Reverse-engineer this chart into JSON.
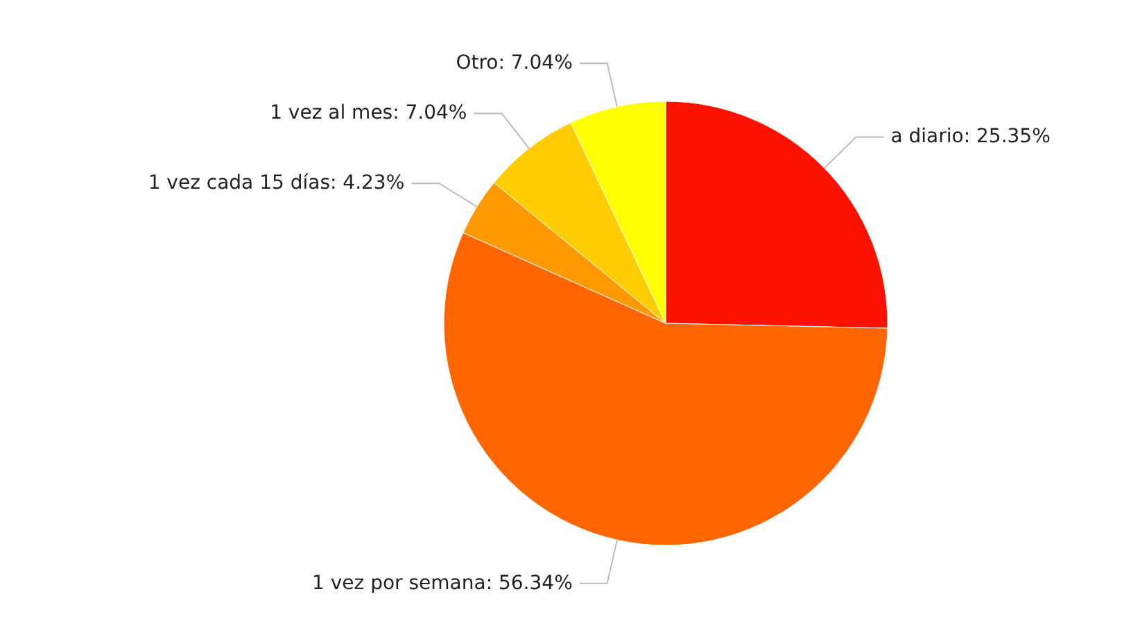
{
  "chart_data": {
    "type": "pie",
    "categories": [
      "a diario",
      "1 vez por semana",
      "1 vez cada 15 días",
      "1 vez al mes",
      "Otro"
    ],
    "values": [
      25.35,
      56.34,
      4.23,
      7.04,
      7.04
    ],
    "value_labels": [
      "25.35%",
      "56.34%",
      "4.23%",
      "7.04%",
      "7.04%"
    ],
    "colors": [
      "#ff1100",
      "#ff6600",
      "#ff9900",
      "#ffcc00",
      "#ffff00"
    ]
  }
}
